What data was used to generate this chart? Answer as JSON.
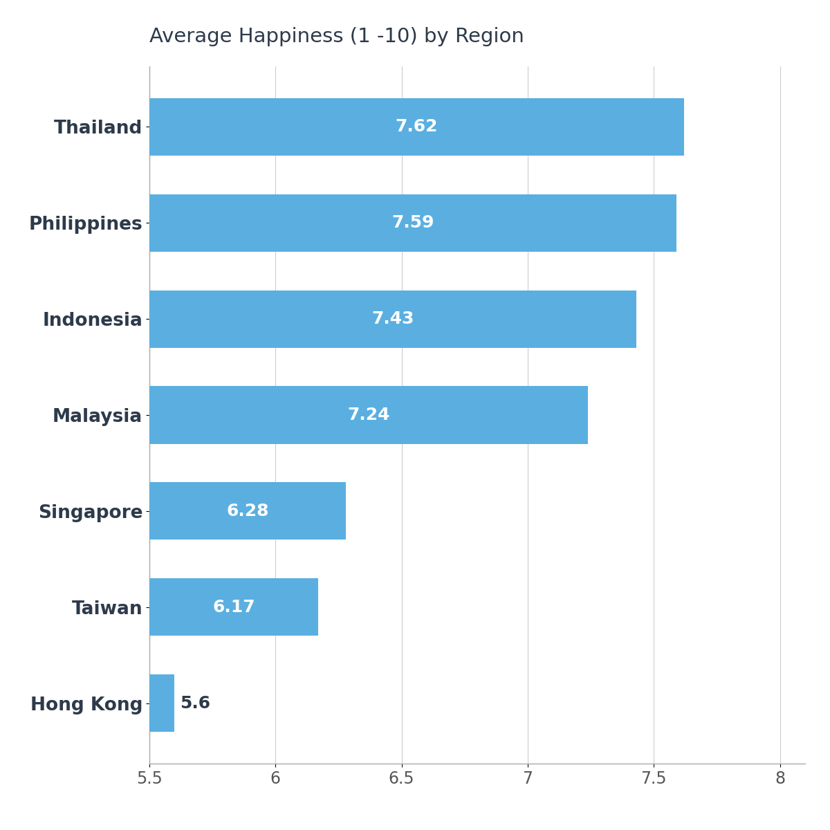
{
  "title": "Average Happiness (1 -10) by Region",
  "categories": [
    "Thailand",
    "Philippines",
    "Indonesia",
    "Malaysia",
    "Singapore",
    "Taiwan",
    "Hong Kong"
  ],
  "values": [
    7.62,
    7.59,
    7.43,
    7.24,
    6.28,
    6.17,
    5.6
  ],
  "labels": [
    "7.62",
    "7.59",
    "7.43",
    "7.24",
    "6.28",
    "6.17",
    "5.6"
  ],
  "bar_color": "#5aafe0",
  "label_color": "#ffffff",
  "label_outside_color": "#2d3a4a",
  "title_color": "#2d3a4a",
  "tick_color": "#555555",
  "background_color": "#ffffff",
  "xlim_min": 5.5,
  "xlim_max": 8.1,
  "xticks": [
    5.5,
    6.0,
    6.5,
    7.0,
    7.5,
    8.0
  ],
  "xtick_labels": [
    "5.5",
    "6",
    "6.5",
    "7",
    "7.5",
    "8"
  ],
  "grid_color": "#cccccc",
  "bar_height": 0.6,
  "title_fontsize": 21,
  "label_fontsize": 18,
  "tick_fontsize": 17,
  "ytick_fontsize": 19,
  "label_threshold": 5.7
}
